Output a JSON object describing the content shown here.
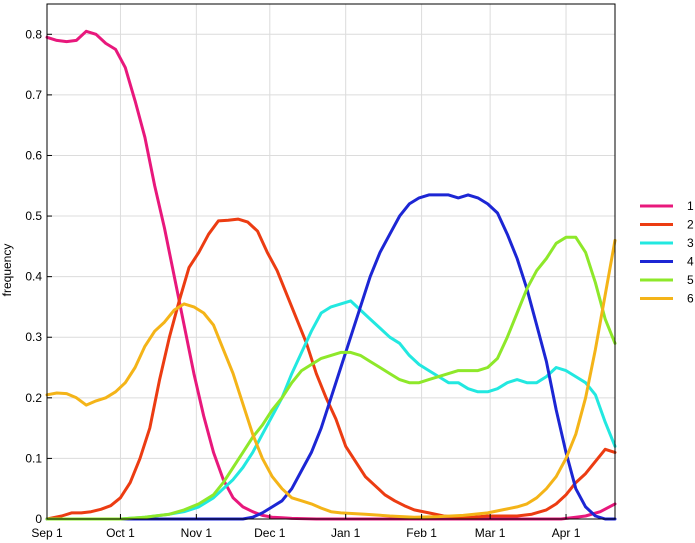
{
  "chart_data": {
    "type": "line",
    "ylabel": "frequency",
    "xlabel": "",
    "title": "",
    "ylim": [
      0,
      0.85
    ],
    "xlim": [
      0,
      232
    ],
    "grid": true,
    "legend_position": "right",
    "y_ticks": [
      {
        "value": 0,
        "label": "0"
      },
      {
        "value": 0.1,
        "label": "0.1"
      },
      {
        "value": 0.2,
        "label": "0.2"
      },
      {
        "value": 0.3,
        "label": "0.3"
      },
      {
        "value": 0.4,
        "label": "0.4"
      },
      {
        "value": 0.5,
        "label": "0.5"
      },
      {
        "value": 0.6,
        "label": "0.6"
      },
      {
        "value": 0.7,
        "label": "0.7"
      },
      {
        "value": 0.8,
        "label": "0.8"
      }
    ],
    "x_ticks": [
      {
        "value": 0,
        "label": "Sep 1"
      },
      {
        "value": 30,
        "label": "Oct 1"
      },
      {
        "value": 61,
        "label": "Nov 1"
      },
      {
        "value": 91,
        "label": "Dec 1"
      },
      {
        "value": 122,
        "label": "Jan 1"
      },
      {
        "value": 153,
        "label": "Feb 1"
      },
      {
        "value": 181,
        "label": "Mar 1"
      },
      {
        "value": 212,
        "label": "Apr 1"
      }
    ],
    "series": [
      {
        "name": "1",
        "color": "#e8187c",
        "x": [
          0,
          4,
          8,
          12,
          16,
          20,
          24,
          28,
          32,
          36,
          40,
          44,
          48,
          52,
          56,
          60,
          64,
          68,
          72,
          76,
          80,
          84,
          88,
          92,
          96,
          100,
          110,
          120,
          140,
          160,
          180,
          200,
          210,
          216,
          220,
          226,
          232
        ],
        "y": [
          0.795,
          0.79,
          0.788,
          0.79,
          0.805,
          0.8,
          0.785,
          0.775,
          0.745,
          0.69,
          0.63,
          0.55,
          0.48,
          0.4,
          0.32,
          0.24,
          0.17,
          0.11,
          0.065,
          0.035,
          0.02,
          0.012,
          0.006,
          0.003,
          0.002,
          0.001,
          0,
          0,
          0,
          0,
          0,
          0,
          0,
          0.003,
          0.005,
          0.012,
          0.025
        ]
      },
      {
        "name": "2",
        "color": "#ec3c12",
        "x": [
          0,
          6,
          10,
          14,
          18,
          22,
          26,
          30,
          34,
          38,
          42,
          46,
          50,
          54,
          58,
          62,
          66,
          70,
          74,
          78,
          82,
          86,
          90,
          94,
          98,
          102,
          106,
          110,
          114,
          118,
          122,
          126,
          130,
          134,
          138,
          142,
          146,
          150,
          156,
          162,
          168,
          174,
          180,
          186,
          192,
          198,
          204,
          208,
          212,
          216,
          220,
          224,
          228,
          232
        ],
        "y": [
          0,
          0.005,
          0.01,
          0.01,
          0.012,
          0.016,
          0.022,
          0.035,
          0.06,
          0.1,
          0.15,
          0.23,
          0.3,
          0.36,
          0.415,
          0.44,
          0.47,
          0.492,
          0.493,
          0.495,
          0.49,
          0.475,
          0.44,
          0.41,
          0.37,
          0.33,
          0.29,
          0.24,
          0.2,
          0.165,
          0.12,
          0.095,
          0.07,
          0.055,
          0.04,
          0.03,
          0.022,
          0.015,
          0.01,
          0.005,
          0.003,
          0.003,
          0.005,
          0.005,
          0.005,
          0.008,
          0.015,
          0.025,
          0.04,
          0.06,
          0.075,
          0.095,
          0.115,
          0.11
        ]
      },
      {
        "name": "3",
        "color": "#22e8e0",
        "x": [
          0,
          30,
          40,
          50,
          56,
          62,
          68,
          72,
          76,
          80,
          84,
          88,
          92,
          96,
          100,
          104,
          108,
          112,
          116,
          120,
          124,
          128,
          132,
          136,
          140,
          144,
          148,
          152,
          156,
          160,
          164,
          168,
          172,
          176,
          180,
          184,
          188,
          192,
          196,
          200,
          204,
          208,
          212,
          216,
          220,
          224,
          228,
          232
        ],
        "y": [
          0,
          0,
          0.003,
          0.008,
          0.012,
          0.02,
          0.035,
          0.05,
          0.065,
          0.085,
          0.11,
          0.14,
          0.17,
          0.2,
          0.24,
          0.275,
          0.31,
          0.34,
          0.35,
          0.355,
          0.36,
          0.345,
          0.33,
          0.315,
          0.3,
          0.29,
          0.27,
          0.255,
          0.245,
          0.235,
          0.225,
          0.225,
          0.215,
          0.21,
          0.21,
          0.215,
          0.225,
          0.23,
          0.225,
          0.225,
          0.235,
          0.25,
          0.245,
          0.235,
          0.225,
          0.205,
          0.16,
          0.12
        ]
      },
      {
        "name": "4",
        "color": "#1c26d4",
        "x": [
          0,
          80,
          84,
          88,
          92,
          96,
          100,
          104,
          108,
          112,
          116,
          120,
          124,
          128,
          132,
          136,
          140,
          144,
          148,
          152,
          156,
          160,
          164,
          168,
          172,
          176,
          180,
          184,
          188,
          192,
          196,
          200,
          204,
          208,
          212,
          216,
          220,
          224,
          228,
          232
        ],
        "y": [
          0,
          0,
          0.003,
          0.01,
          0.02,
          0.03,
          0.05,
          0.08,
          0.11,
          0.15,
          0.2,
          0.25,
          0.3,
          0.35,
          0.4,
          0.44,
          0.47,
          0.5,
          0.52,
          0.53,
          0.535,
          0.535,
          0.535,
          0.53,
          0.535,
          0.53,
          0.52,
          0.505,
          0.47,
          0.43,
          0.38,
          0.32,
          0.26,
          0.18,
          0.11,
          0.05,
          0.02,
          0.005,
          0,
          0
        ]
      },
      {
        "name": "5",
        "color": "#8ee82a",
        "x": [
          0,
          30,
          40,
          50,
          56,
          62,
          68,
          72,
          76,
          80,
          84,
          88,
          92,
          96,
          100,
          104,
          108,
          112,
          116,
          120,
          124,
          128,
          132,
          136,
          140,
          144,
          148,
          152,
          156,
          160,
          164,
          168,
          172,
          176,
          180,
          184,
          188,
          192,
          196,
          200,
          204,
          208,
          212,
          216,
          220,
          224,
          228,
          232
        ],
        "y": [
          0,
          0,
          0.003,
          0.008,
          0.015,
          0.025,
          0.04,
          0.06,
          0.085,
          0.11,
          0.135,
          0.155,
          0.18,
          0.2,
          0.225,
          0.245,
          0.255,
          0.265,
          0.27,
          0.275,
          0.275,
          0.27,
          0.26,
          0.25,
          0.24,
          0.23,
          0.225,
          0.225,
          0.23,
          0.235,
          0.24,
          0.245,
          0.245,
          0.245,
          0.25,
          0.265,
          0.3,
          0.34,
          0.38,
          0.41,
          0.43,
          0.455,
          0.465,
          0.465,
          0.44,
          0.39,
          0.33,
          0.29
        ]
      },
      {
        "name": "6",
        "color": "#f4b418",
        "x": [
          0,
          4,
          8,
          12,
          16,
          20,
          24,
          28,
          32,
          36,
          40,
          44,
          48,
          52,
          56,
          60,
          64,
          68,
          72,
          76,
          80,
          84,
          88,
          92,
          96,
          100,
          104,
          108,
          112,
          116,
          120,
          130,
          140,
          150,
          160,
          170,
          180,
          186,
          192,
          196,
          200,
          204,
          208,
          212,
          216,
          220,
          224,
          228,
          232
        ],
        "y": [
          0.205,
          0.208,
          0.207,
          0.2,
          0.188,
          0.195,
          0.2,
          0.21,
          0.225,
          0.25,
          0.285,
          0.31,
          0.325,
          0.345,
          0.355,
          0.35,
          0.34,
          0.32,
          0.28,
          0.24,
          0.19,
          0.14,
          0.1,
          0.07,
          0.05,
          0.035,
          0.03,
          0.025,
          0.018,
          0.012,
          0.01,
          0.008,
          0.005,
          0.003,
          0.004,
          0.006,
          0.01,
          0.015,
          0.02,
          0.025,
          0.035,
          0.05,
          0.07,
          0.1,
          0.14,
          0.2,
          0.28,
          0.37,
          0.46
        ]
      }
    ]
  }
}
